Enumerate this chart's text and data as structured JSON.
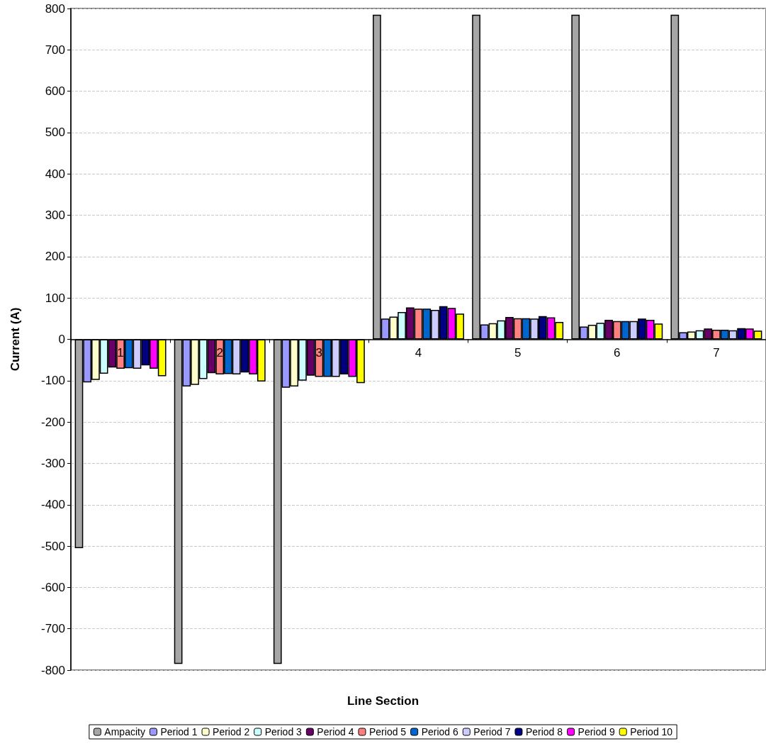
{
  "chart_data": {
    "type": "bar",
    "xlabel": "Line Section",
    "ylabel": "Current (A)",
    "categories": [
      "1",
      "2",
      "3",
      "4",
      "5",
      "6",
      "7"
    ],
    "series": [
      {
        "name": "Ampacity",
        "color": "#a6a6a6",
        "values": [
          -505,
          -785,
          -785,
          785,
          785,
          785,
          785
        ]
      },
      {
        "name": "Period 1",
        "color": "#9999ff",
        "values": [
          -104,
          -114,
          -117,
          50,
          36,
          31,
          17
        ]
      },
      {
        "name": "Period 2",
        "color": "#ffffcc",
        "values": [
          -98,
          -110,
          -114,
          55,
          39,
          35,
          19
        ]
      },
      {
        "name": "Period 3",
        "color": "#ccffff",
        "values": [
          -83,
          -96,
          -100,
          66,
          46,
          40,
          22
        ]
      },
      {
        "name": "Period 4",
        "color": "#660066",
        "values": [
          -68,
          -82,
          -88,
          77,
          54,
          47,
          26
        ]
      },
      {
        "name": "Period 5",
        "color": "#ff8080",
        "values": [
          -71,
          -85,
          -91,
          74,
          51,
          44,
          23
        ]
      },
      {
        "name": "Period 6",
        "color": "#0066cc",
        "values": [
          -70,
          -84,
          -91,
          74,
          51,
          44,
          23
        ]
      },
      {
        "name": "Period 7",
        "color": "#ccccff",
        "values": [
          -71,
          -85,
          -91,
          71,
          50,
          44,
          22
        ]
      },
      {
        "name": "Period 8",
        "color": "#000080",
        "values": [
          -63,
          -80,
          -85,
          80,
          56,
          50,
          27
        ]
      },
      {
        "name": "Period 9",
        "color": "#ff00ff",
        "values": [
          -71,
          -85,
          -91,
          76,
          53,
          47,
          26
        ]
      },
      {
        "name": "Period 10",
        "color": "#ffff00",
        "values": [
          -89,
          -102,
          -106,
          62,
          42,
          38,
          21
        ]
      }
    ],
    "ylim": [
      -800,
      800
    ],
    "yticks": [
      -800,
      -700,
      -600,
      -500,
      -400,
      -300,
      -200,
      -100,
      0,
      100,
      200,
      300,
      400,
      500,
      600,
      700,
      800
    ],
    "grid": "y",
    "legend": "bottom"
  }
}
